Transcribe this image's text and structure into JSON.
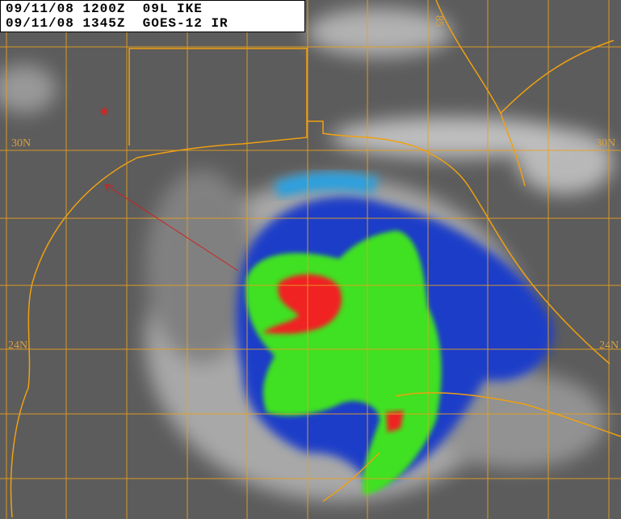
{
  "header": {
    "line1": "09/11/08 1200Z  09L IKE",
    "line2": "09/11/08 1345Z  GOES-12 IR"
  },
  "grid_labels": {
    "lat_30_left": "30N",
    "lat_30_right": "30N",
    "lat_24_left": "24N",
    "lat_24_right": "24N",
    "lon_top": "85"
  },
  "colors": {
    "grid": "#e8a020",
    "coast": "#f0a010",
    "cold_cloud_blue": "#1a3cc8",
    "cloud_green": "#40e020",
    "coldest_red": "#f02020",
    "track_arrow": "#d02020"
  }
}
